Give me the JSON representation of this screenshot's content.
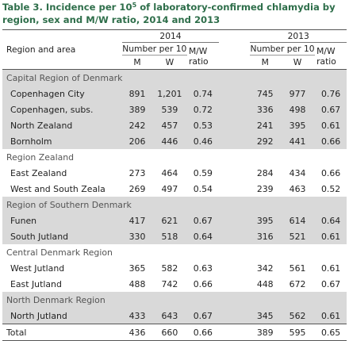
{
  "title": {
    "part1": "Table 3. Incidence per 10",
    "sup": "5",
    "part2": " of laboratory-confirmed chlamydia by region, sex and M/W ratio, 2014 and 2013"
  },
  "header": {
    "region_label": "Region and area",
    "year_2014": "2014",
    "year_2013": "2013",
    "number_per": "Number per 10",
    "number_per_sup": "5",
    "m": "M",
    "w": "W",
    "ratio_line1": "M/W",
    "ratio_line2": "ratio"
  },
  "groups": [
    {
      "name": "Capital Region of Denmark",
      "rows": [
        {
          "area": "Copenhagen City",
          "m14": "891",
          "w14": "1,201",
          "r14": "0.74",
          "m13": "745",
          "w13": "977",
          "r13": "0.76"
        },
        {
          "area": "Copenhagen, subs.",
          "m14": "389",
          "w14": "539",
          "r14": "0.72",
          "m13": "336",
          "w13": "498",
          "r13": "0.67"
        },
        {
          "area": "North Zealand",
          "m14": "242",
          "w14": "457",
          "r14": "0.53",
          "m13": "241",
          "w13": "395",
          "r13": "0.61"
        },
        {
          "area": "Bornholm",
          "m14": "206",
          "w14": "446",
          "r14": "0.46",
          "m13": "292",
          "w13": "441",
          "r13": "0.66"
        }
      ]
    },
    {
      "name": "Region Zealand",
      "rows": [
        {
          "area": "East Zealand",
          "m14": "273",
          "w14": "464",
          "r14": "0.59",
          "m13": "284",
          "w13": "434",
          "r13": "0.66"
        },
        {
          "area": "West and South Zeala",
          "m14": "269",
          "w14": "497",
          "r14": "0.54",
          "m13": "239",
          "w13": "463",
          "r13": "0.52"
        }
      ]
    },
    {
      "name": "Region of Southern Denmark",
      "rows": [
        {
          "area": "Funen",
          "m14": "417",
          "w14": "621",
          "r14": "0.67",
          "m13": "395",
          "w13": "614",
          "r13": "0.64"
        },
        {
          "area": "South Jutland",
          "m14": "330",
          "w14": "518",
          "r14": "0.64",
          "m13": "316",
          "w13": "521",
          "r13": "0.61"
        }
      ]
    },
    {
      "name": "Central Denmark Region",
      "rows": [
        {
          "area": "West Jutland",
          "m14": "365",
          "w14": "582",
          "r14": "0.63",
          "m13": "342",
          "w13": "561",
          "r13": "0.61"
        },
        {
          "area": "East Jutland",
          "m14": "488",
          "w14": "742",
          "r14": "0.66",
          "m13": "448",
          "w13": "672",
          "r13": "0.67"
        }
      ]
    },
    {
      "name": "North Denmark Region",
      "rows": [
        {
          "area": "North Jutland",
          "m14": "433",
          "w14": "643",
          "r14": "0.67",
          "m13": "345",
          "w13": "562",
          "r13": "0.61"
        }
      ]
    }
  ],
  "total": {
    "area": "Total",
    "m14": "436",
    "w14": "660",
    "r14": "0.66",
    "m13": "389",
    "w13": "595",
    "r13": "0.65"
  },
  "colors": {
    "title": "#2e6e4a",
    "shade": "#d9d9d9"
  }
}
